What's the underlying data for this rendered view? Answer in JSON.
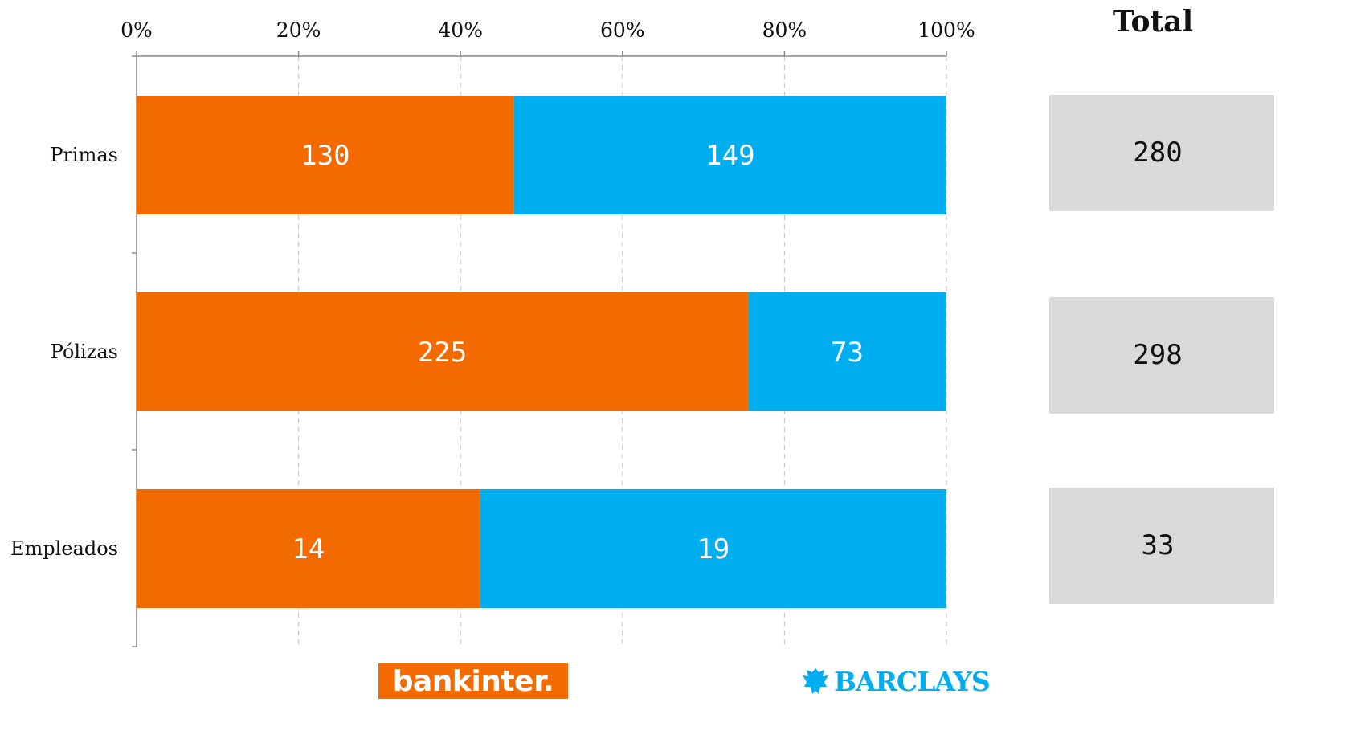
{
  "chart_data": {
    "type": "bar",
    "orientation": "horizontal",
    "stacked": "percent",
    "categories": [
      "Primas",
      "Pólizas",
      "Empleados"
    ],
    "series": [
      {
        "name": "bankinter.",
        "color": "#f26a00",
        "values": [
          130,
          225,
          14
        ]
      },
      {
        "name": "BARCLAYS",
        "color": "#00aeef",
        "values": [
          149,
          73,
          19
        ]
      }
    ],
    "xticks": [
      "0%",
      "20%",
      "40%",
      "60%",
      "80%",
      "100%"
    ],
    "xlim": [
      0,
      100
    ],
    "grid": true,
    "totals_title": "Total",
    "totals": [
      "280",
      "298",
      "33"
    ]
  },
  "logos": {
    "bankinter": "bankinter.",
    "barclays": "BARCLAYS",
    "barclays_icon": "eagle-icon"
  }
}
